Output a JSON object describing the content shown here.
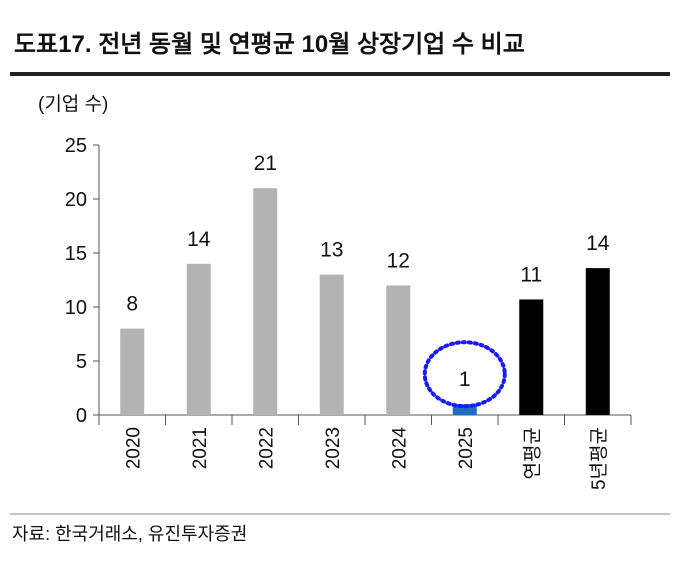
{
  "chart_data": {
    "type": "bar",
    "title": "도표17.  전년 동월 및 연평균 10월 상장기업 수 비교",
    "y_label": "(기업 수)",
    "categories": [
      "2020",
      "2021",
      "2022",
      "2023",
      "2024",
      "2025",
      "연평균",
      "5년평균"
    ],
    "values": [
      8,
      14,
      21,
      13,
      12,
      1,
      10.7,
      13.6
    ],
    "value_labels": [
      "8",
      "14",
      "21",
      "13",
      "12",
      "1",
      "11",
      "14"
    ],
    "colors": [
      "#b3b3b3",
      "#b3b3b3",
      "#b3b3b3",
      "#b3b3b3",
      "#b3b3b3",
      "#1f6fbf",
      "#000000",
      "#000000"
    ],
    "ylim": [
      0,
      25
    ],
    "yticks": [
      0,
      5,
      10,
      15,
      20,
      25
    ],
    "grid": false,
    "source": "자료: 한국거래소, 유진투자증권"
  }
}
